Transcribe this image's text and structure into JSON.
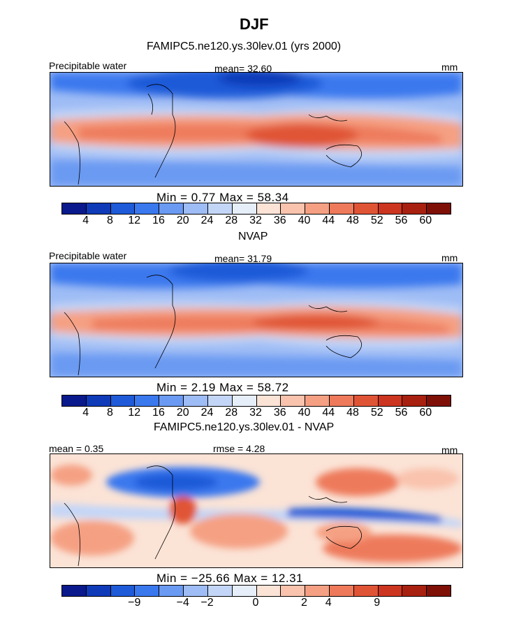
{
  "title": "DJF",
  "palette_abs": [
    "#0a1a8c",
    "#0f3ab8",
    "#1f5ad8",
    "#3a78ee",
    "#6a9af2",
    "#9ebcf5",
    "#c4d6f7",
    "#e6eefa",
    "#fbe3d6",
    "#f9c3ad",
    "#f5a083",
    "#ee7a5b",
    "#e05436",
    "#cc3520",
    "#a8200f",
    "#7e1008"
  ],
  "palette_diff": [
    "#0a1a8c",
    "#0f3ab8",
    "#1f5ad8",
    "#3a78ee",
    "#6a9af2",
    "#9ebcf5",
    "#c4d6f7",
    "#e6eefa",
    "#fbe3d6",
    "#f9c3ad",
    "#f5a083",
    "#ee7a5b",
    "#e05436",
    "#cc3520",
    "#a8200f",
    "#7e1008"
  ],
  "panels": [
    {
      "heading": "FAMIPC5.ne120.ys.30lev.01 (yrs 2000)",
      "left_label": "Precipitable water",
      "mid_label": "mean=  32.60",
      "units": "mm",
      "stats": "Min =    0.77  Max =   58.34",
      "ticks": [
        "4",
        "8",
        "12",
        "16",
        "20",
        "24",
        "28",
        "32",
        "36",
        "40",
        "44",
        "48",
        "52",
        "56",
        "60"
      ]
    },
    {
      "heading": "NVAP",
      "left_label": "Precipitable water",
      "mid_label": "mean=  31.79",
      "units": "mm",
      "stats": "Min =    2.19  Max =   58.72",
      "ticks": [
        "4",
        "8",
        "12",
        "16",
        "20",
        "24",
        "28",
        "32",
        "36",
        "40",
        "44",
        "48",
        "52",
        "56",
        "60"
      ]
    },
    {
      "heading": "FAMIPC5.ne120.ys.30lev.01 - NVAP",
      "left_label": "mean =    0.35",
      "mid_label": "rmse =    4.28",
      "units": "mm",
      "stats": "Min = −25.66  Max =   12.31",
      "ticks": [
        "−9",
        "−4",
        "−2",
        "0",
        "2",
        "4",
        "9"
      ]
    }
  ],
  "chart_data": [
    {
      "type": "heatmap",
      "title": "FAMIPC5.ne120.ys.30lev.01 (yrs 2000)",
      "variable": "Precipitable water",
      "units": "mm",
      "mean": 32.6,
      "min": 0.77,
      "max": 58.34,
      "contour_levels": [
        4,
        8,
        12,
        16,
        20,
        24,
        28,
        32,
        36,
        40,
        44,
        48,
        52,
        56,
        60
      ]
    },
    {
      "type": "heatmap",
      "title": "NVAP",
      "variable": "Precipitable water",
      "units": "mm",
      "mean": 31.79,
      "min": 2.19,
      "max": 58.72,
      "contour_levels": [
        4,
        8,
        12,
        16,
        20,
        24,
        28,
        32,
        36,
        40,
        44,
        48,
        52,
        56,
        60
      ]
    },
    {
      "type": "heatmap",
      "title": "FAMIPC5.ne120.ys.30lev.01 - NVAP",
      "units": "mm",
      "mean": 0.35,
      "rmse": 4.28,
      "min": -25.66,
      "max": 12.31,
      "contour_levels": [
        -9,
        -4,
        -2,
        0,
        2,
        4,
        9
      ]
    }
  ]
}
